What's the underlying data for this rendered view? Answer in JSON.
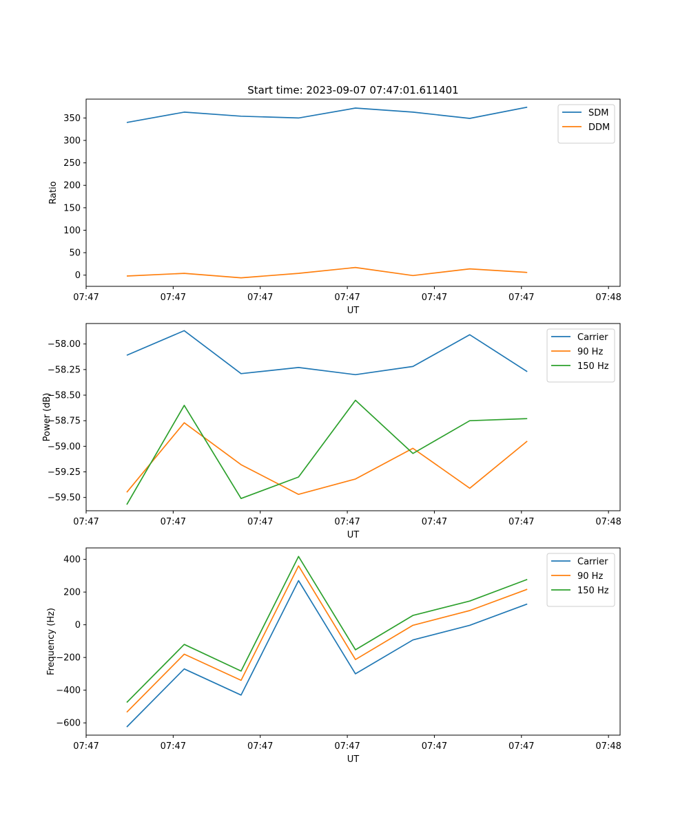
{
  "chart_data": [
    {
      "type": "line",
      "title": "Start time: 2023-09-07 07:47:01.611401",
      "xlabel": "UT",
      "ylabel": "Ratio",
      "xlim": [
        0,
        9.2
      ],
      "ylim": [
        -25,
        392
      ],
      "xticks": [
        0,
        1.5,
        3,
        4.5,
        6,
        7.5,
        9
      ],
      "xtick_labels": [
        "07:47",
        "07:47",
        "07:47",
        "07:47",
        "07:47",
        "07:47",
        "07:48"
      ],
      "yticks": [
        0,
        50,
        100,
        150,
        200,
        250,
        300,
        350
      ],
      "ytick_labels": [
        "0",
        "50",
        "100",
        "150",
        "200",
        "250",
        "300",
        "350"
      ],
      "legend": "top-right",
      "x": [
        0.7,
        1.69,
        2.67,
        3.66,
        4.64,
        5.63,
        6.61,
        7.6
      ],
      "series": [
        {
          "name": "SDM",
          "color": "#1f77b4",
          "values": [
            340,
            363,
            354,
            350,
            372,
            363,
            349,
            374
          ]
        },
        {
          "name": "DDM",
          "color": "#ff7f0e",
          "values": [
            -2,
            4,
            -6,
            4,
            17,
            -1,
            14,
            6
          ]
        }
      ]
    },
    {
      "type": "line",
      "title": "",
      "xlabel": "UT",
      "ylabel": "Power (dB)",
      "xlim": [
        0,
        9.2
      ],
      "ylim": [
        -59.63,
        -57.8
      ],
      "xticks": [
        0,
        1.5,
        3,
        4.5,
        6,
        7.5,
        9
      ],
      "xtick_labels": [
        "07:47",
        "07:47",
        "07:47",
        "07:47",
        "07:47",
        "07:47",
        "07:48"
      ],
      "yticks": [
        -58.0,
        -58.25,
        -58.5,
        -58.75,
        -59.0,
        -59.25,
        -59.5
      ],
      "ytick_labels": [
        "−58.00",
        "−58.25",
        "−58.50",
        "−58.75",
        "−59.00",
        "−59.25",
        "−59.50"
      ],
      "legend": "top-right",
      "x": [
        0.7,
        1.69,
        2.67,
        3.66,
        4.64,
        5.63,
        6.61,
        7.6
      ],
      "series": [
        {
          "name": "Carrier",
          "color": "#1f77b4",
          "values": [
            -58.11,
            -57.87,
            -58.29,
            -58.23,
            -58.3,
            -58.22,
            -57.91,
            -58.27
          ]
        },
        {
          "name": "90 Hz",
          "color": "#ff7f0e",
          "values": [
            -59.45,
            -58.77,
            -59.18,
            -59.47,
            -59.32,
            -59.02,
            -59.41,
            -58.95
          ]
        },
        {
          "name": "150 Hz",
          "color": "#2ca02c",
          "values": [
            -59.57,
            -58.6,
            -59.51,
            -59.3,
            -58.55,
            -59.07,
            -58.75,
            -58.73
          ]
        }
      ]
    },
    {
      "type": "line",
      "title": "",
      "xlabel": "UT",
      "ylabel": "Frequency (Hz)",
      "xlim": [
        0,
        9.2
      ],
      "ylim": [
        -675,
        470
      ],
      "xticks": [
        0,
        1.5,
        3,
        4.5,
        6,
        7.5,
        9
      ],
      "xtick_labels": [
        "07:47",
        "07:47",
        "07:47",
        "07:47",
        "07:47",
        "07:47",
        "07:48"
      ],
      "yticks": [
        -600,
        -400,
        -200,
        0,
        200,
        400
      ],
      "ytick_labels": [
        "−600",
        "−400",
        "−200",
        "0",
        "200",
        "400"
      ],
      "legend": "top-right",
      "x": [
        0.7,
        1.69,
        2.67,
        3.66,
        4.64,
        5.63,
        6.61,
        7.6
      ],
      "series": [
        {
          "name": "Carrier",
          "color": "#1f77b4",
          "values": [
            -625,
            -270,
            -430,
            270,
            -300,
            -93,
            -3,
            127
          ]
        },
        {
          "name": "90 Hz",
          "color": "#ff7f0e",
          "values": [
            -535,
            -180,
            -340,
            360,
            -213,
            -3,
            87,
            217
          ]
        },
        {
          "name": "150 Hz",
          "color": "#2ca02c",
          "values": [
            -475,
            -120,
            -283,
            418,
            -153,
            57,
            145,
            277
          ]
        }
      ]
    }
  ]
}
